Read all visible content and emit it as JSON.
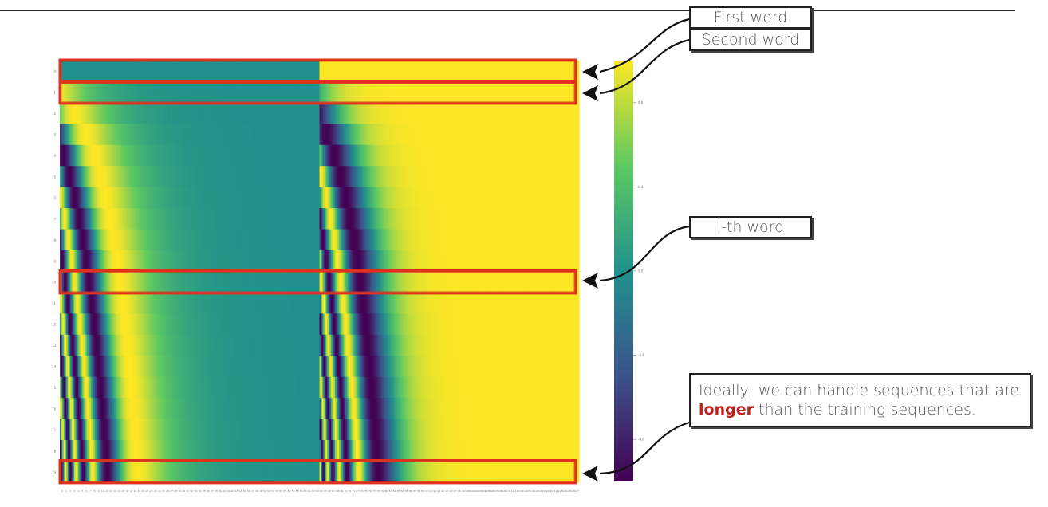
{
  "callouts": {
    "first_word": "First word",
    "second_word": "Second word",
    "ith_word": "i-th word",
    "note_pre": "Ideally, we can handle sequences that are ",
    "note_highlight": "longer",
    "note_post": " than the training sequences."
  },
  "colorbar": {
    "ticks": [
      "0.8",
      "0.4",
      "0.0",
      "-0.4",
      "-0.8"
    ],
    "tick_values": [
      0.8,
      0.4,
      0.0,
      -0.4,
      -0.8
    ],
    "range": [
      -1,
      1
    ],
    "colormap": "viridis"
  },
  "heatmap": {
    "rows": 20,
    "row_labels": [
      "0",
      "1",
      "2",
      "3",
      "4",
      "5",
      "6",
      "7",
      "8",
      "9",
      "10",
      "11",
      "12",
      "13",
      "14",
      "15",
      "16",
      "17",
      "18",
      "19"
    ],
    "highlighted_rows": [
      0,
      1,
      10,
      19
    ],
    "highlight_color": "#e0301e"
  }
}
